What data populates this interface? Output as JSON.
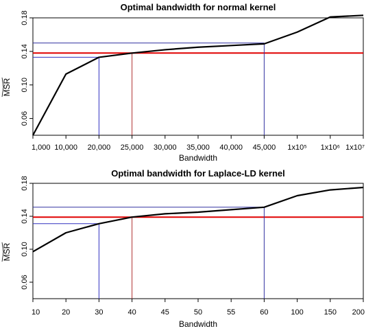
{
  "chart_data": [
    {
      "type": "line",
      "title": "Optimal bandwidth for normal kernel",
      "xlabel": "Bandwidth",
      "ylabel": "MSR",
      "ylim": [
        0.04,
        0.18
      ],
      "yticks": [
        "0.06",
        "0.10",
        "0.14",
        "0.18"
      ],
      "ytick_values": [
        0.06,
        0.1,
        0.14,
        0.18
      ],
      "categories": [
        "1,000",
        "10,000",
        "20,000",
        "25,000",
        "30,000",
        "35,000",
        "40,000",
        "45,000",
        "1x10⁵",
        "1x10⁶",
        "1x10⁷"
      ],
      "series": [
        {
          "values": [
            0.04,
            0.113,
            0.133,
            0.138,
            0.142,
            0.145,
            0.147,
            0.149,
            0.163,
            0.181,
            0.183
          ],
          "color": "#000000"
        }
      ],
      "reference_lines": [
        {
          "kind": "horizontal",
          "y": 0.138,
          "color": "#e00000"
        },
        {
          "kind": "vertical",
          "category_index": 3,
          "y_end": 0.138,
          "color": "#b03030"
        },
        {
          "kind": "horizontal",
          "y": 0.15,
          "x_end_index": 7,
          "color": "#3030a0"
        },
        {
          "kind": "vertical",
          "category_index": 7,
          "y_end": 0.15,
          "color": "#3030a0"
        },
        {
          "kind": "horizontal",
          "y": 0.133,
          "x_end_index": 2,
          "color": "#3030c0"
        },
        {
          "kind": "vertical",
          "category_index": 2,
          "y_end": 0.133,
          "color": "#3030c0"
        }
      ]
    },
    {
      "type": "line",
      "title": "Optimal bandwidth for Laplace-LD kernel",
      "xlabel": "Bandwidth",
      "ylabel": "MSR",
      "ylim": [
        0.04,
        0.18
      ],
      "yticks": [
        "0.06",
        "0.10",
        "0.14",
        "0.18"
      ],
      "ytick_values": [
        0.06,
        0.1,
        0.14,
        0.18
      ],
      "categories": [
        "10",
        "20",
        "30",
        "40",
        "45",
        "50",
        "55",
        "60",
        "100",
        "150",
        "200"
      ],
      "series": [
        {
          "values": [
            0.097,
            0.12,
            0.131,
            0.139,
            0.143,
            0.145,
            0.148,
            0.151,
            0.165,
            0.172,
            0.175
          ],
          "color": "#000000"
        }
      ],
      "reference_lines": [
        {
          "kind": "horizontal",
          "y": 0.139,
          "color": "#e00000"
        },
        {
          "kind": "vertical",
          "category_index": 3,
          "y_end": 0.139,
          "color": "#b03030"
        },
        {
          "kind": "horizontal",
          "y": 0.151,
          "x_end_index": 7,
          "color": "#3030a0"
        },
        {
          "kind": "vertical",
          "category_index": 7,
          "y_end": 0.151,
          "color": "#3030a0"
        },
        {
          "kind": "horizontal",
          "y": 0.131,
          "x_end_index": 2,
          "color": "#3030c0"
        },
        {
          "kind": "vertical",
          "category_index": 2,
          "y_end": 0.131,
          "color": "#3030c0"
        }
      ]
    }
  ]
}
